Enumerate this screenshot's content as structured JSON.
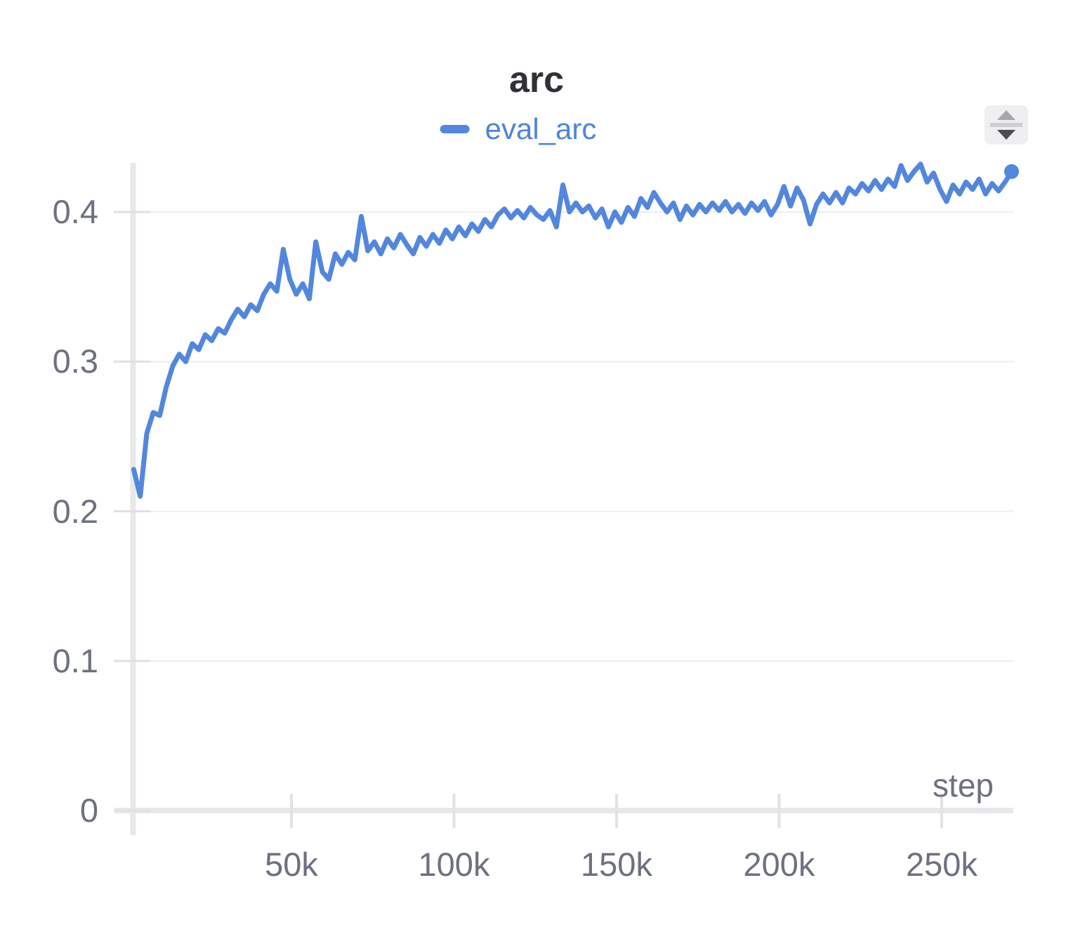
{
  "header": {
    "title": "arc"
  },
  "controls": {
    "resize_button": {
      "icon": "up-down-triangles"
    }
  },
  "chart_data": {
    "type": "line",
    "title": "arc",
    "xlabel": "step",
    "ylabel": "",
    "legend_position": "top-center",
    "grid": "horizontal",
    "xlim": [
      0,
      272000
    ],
    "ylim": [
      0,
      0.433
    ],
    "x_ticks": [
      {
        "value": 50000,
        "label": "50k"
      },
      {
        "value": 100000,
        "label": "100k"
      },
      {
        "value": 150000,
        "label": "150k"
      },
      {
        "value": 200000,
        "label": "200k"
      },
      {
        "value": 250000,
        "label": "250k"
      }
    ],
    "y_ticks": [
      {
        "value": 0,
        "label": "0"
      },
      {
        "value": 0.1,
        "label": "0.1"
      },
      {
        "value": 0.2,
        "label": "0.2"
      },
      {
        "value": 0.3,
        "label": "0.3"
      },
      {
        "value": 0.4,
        "label": "0.4"
      }
    ],
    "series": [
      {
        "name": "eval_arc",
        "color": "#5287dd",
        "end_marker": true,
        "final_value": 0.427,
        "x_start": 1500,
        "x_step": 2000,
        "values": [
          0.228,
          0.21,
          0.252,
          0.266,
          0.264,
          0.283,
          0.297,
          0.305,
          0.3,
          0.312,
          0.308,
          0.318,
          0.314,
          0.322,
          0.319,
          0.328,
          0.335,
          0.33,
          0.338,
          0.334,
          0.345,
          0.352,
          0.347,
          0.375,
          0.355,
          0.345,
          0.352,
          0.342,
          0.38,
          0.36,
          0.355,
          0.372,
          0.365,
          0.373,
          0.368,
          0.397,
          0.374,
          0.38,
          0.372,
          0.382,
          0.376,
          0.385,
          0.378,
          0.372,
          0.383,
          0.377,
          0.385,
          0.379,
          0.388,
          0.382,
          0.39,
          0.384,
          0.392,
          0.387,
          0.395,
          0.39,
          0.398,
          0.402,
          0.396,
          0.401,
          0.396,
          0.403,
          0.398,
          0.395,
          0.401,
          0.39,
          0.418,
          0.4,
          0.406,
          0.4,
          0.404,
          0.396,
          0.402,
          0.39,
          0.4,
          0.393,
          0.403,
          0.397,
          0.409,
          0.403,
          0.413,
          0.406,
          0.4,
          0.406,
          0.395,
          0.404,
          0.398,
          0.405,
          0.4,
          0.406,
          0.401,
          0.407,
          0.4,
          0.405,
          0.399,
          0.406,
          0.401,
          0.407,
          0.398,
          0.405,
          0.417,
          0.404,
          0.416,
          0.408,
          0.392,
          0.405,
          0.412,
          0.406,
          0.413,
          0.406,
          0.416,
          0.412,
          0.419,
          0.414,
          0.421,
          0.415,
          0.422,
          0.417,
          0.431,
          0.421,
          0.427,
          0.432,
          0.42,
          0.426,
          0.415,
          0.407,
          0.418,
          0.412,
          0.42,
          0.415,
          0.422,
          0.412,
          0.419,
          0.414,
          0.42,
          0.427
        ]
      }
    ]
  }
}
